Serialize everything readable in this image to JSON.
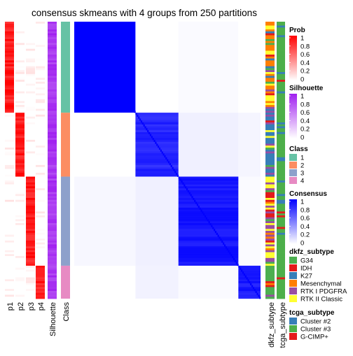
{
  "chart_data": {
    "type": "heatmap",
    "title": "consensus skmeans with 4 groups from 250 partitions",
    "column_labels": [
      "p1",
      "p2",
      "p3",
      "p4",
      "Silhouette",
      "Class"
    ],
    "group_sizes": [
      47,
      33,
      46,
      17
    ],
    "group_classes": [
      "1",
      "2",
      "3",
      "4"
    ],
    "consensus_block_values": [
      [
        1.0,
        0.0,
        0.02,
        0.0
      ],
      [
        0.0,
        0.82,
        0.06,
        0.04
      ],
      [
        0.03,
        0.06,
        0.9,
        0.02
      ],
      [
        0.0,
        0.05,
        0.02,
        0.88
      ]
    ],
    "annotation_tracks": [
      "dkfz_subtype",
      "tcga_subtype"
    ],
    "legends": [
      {
        "title": "Prob",
        "type": "continuous",
        "ticks": [
          "1",
          "0.8",
          "0.6",
          "0.4",
          "0.2",
          "0"
        ],
        "colors": [
          "#FF0000",
          "#FFFFFF"
        ]
      },
      {
        "title": "Silhouette",
        "type": "continuous",
        "ticks": [
          "1",
          "0.8",
          "0.6",
          "0.4",
          "0.2",
          "0"
        ],
        "colors": [
          "#A020F0",
          "#FFFFFF"
        ]
      },
      {
        "title": "Class",
        "type": "discrete",
        "entries": [
          {
            "label": "1",
            "color": "#66C2A5"
          },
          {
            "label": "2",
            "color": "#FC8D62"
          },
          {
            "label": "3",
            "color": "#8DA0CB"
          },
          {
            "label": "4",
            "color": "#E78AC3"
          }
        ]
      },
      {
        "title": "Consensus",
        "type": "continuous",
        "ticks": [
          "1",
          "0.8",
          "0.6",
          "0.4",
          "0.2",
          "0"
        ],
        "colors": [
          "#0000FF",
          "#FFFFFF"
        ]
      },
      {
        "title": "dkfz_subtype",
        "type": "discrete",
        "entries": [
          {
            "label": "G34",
            "color": "#4CAF50"
          },
          {
            "label": "IDH",
            "color": "#E41A1C"
          },
          {
            "label": "K27",
            "color": "#377EB8"
          },
          {
            "label": "Mesenchymal",
            "color": "#FF7F00"
          },
          {
            "label": "RTK I PDGFRA",
            "color": "#984EA3"
          },
          {
            "label": "RTK II Classic",
            "color": "#FFFF33"
          }
        ]
      },
      {
        "title": "tcga_subtype",
        "type": "discrete",
        "entries": [
          {
            "label": "Cluster #2",
            "color": "#377EB8"
          },
          {
            "label": "Cluster #3",
            "color": "#4DAF4A"
          },
          {
            "label": "G-CIMP+",
            "color": "#E41A1C"
          }
        ]
      }
    ]
  }
}
